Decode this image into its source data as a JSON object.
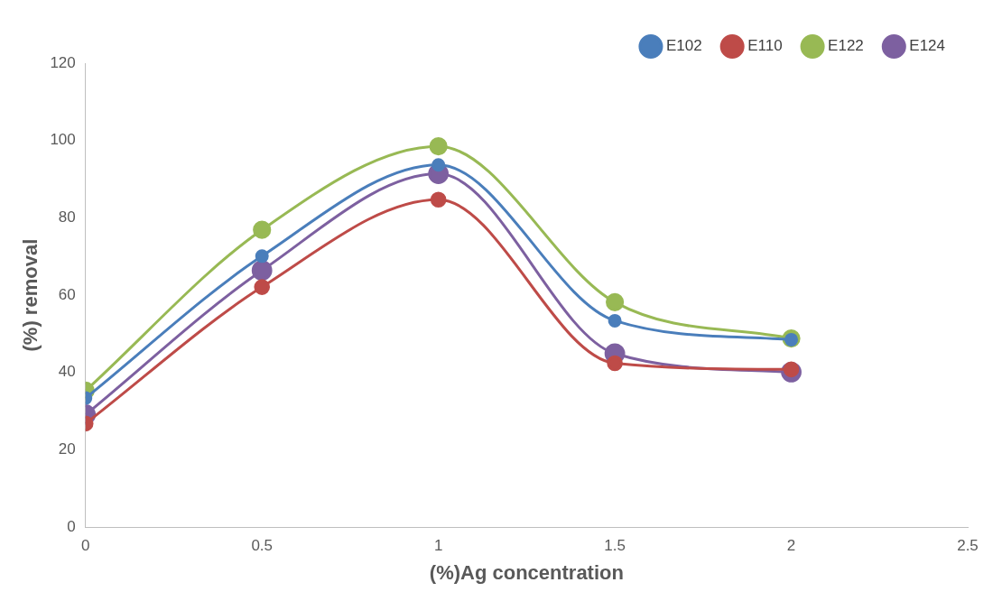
{
  "chart_data": {
    "type": "line",
    "xlabel": "(%)Ag concentration",
    "ylabel": "(%) removal",
    "x": [
      0,
      0.5,
      1,
      1.5,
      2
    ],
    "series": [
      {
        "name": "E102",
        "color": "#4a7ebb",
        "values": [
          33.4,
          70.1,
          93.7,
          53.4,
          48.5
        ]
      },
      {
        "name": "E110",
        "color": "#be4b48",
        "values": [
          26.8,
          62.1,
          84.7,
          42.4,
          40.8
        ]
      },
      {
        "name": "E122",
        "color": "#98b954",
        "values": [
          35.3,
          76.9,
          98.5,
          58.2,
          48.8
        ]
      },
      {
        "name": "E124",
        "color": "#7d60a0",
        "values": [
          29.1,
          66.4,
          91.4,
          44.9,
          40.1
        ]
      }
    ],
    "xlim": [
      0,
      2.5
    ],
    "xticks": [
      0,
      0.5,
      1,
      1.5,
      2,
      2.5
    ],
    "ylim": [
      0,
      120
    ],
    "yticks": [
      0,
      20,
      40,
      60,
      80,
      100,
      120
    ],
    "grid": false,
    "legend": "top right",
    "marker": "circle",
    "line_style": "solid"
  }
}
